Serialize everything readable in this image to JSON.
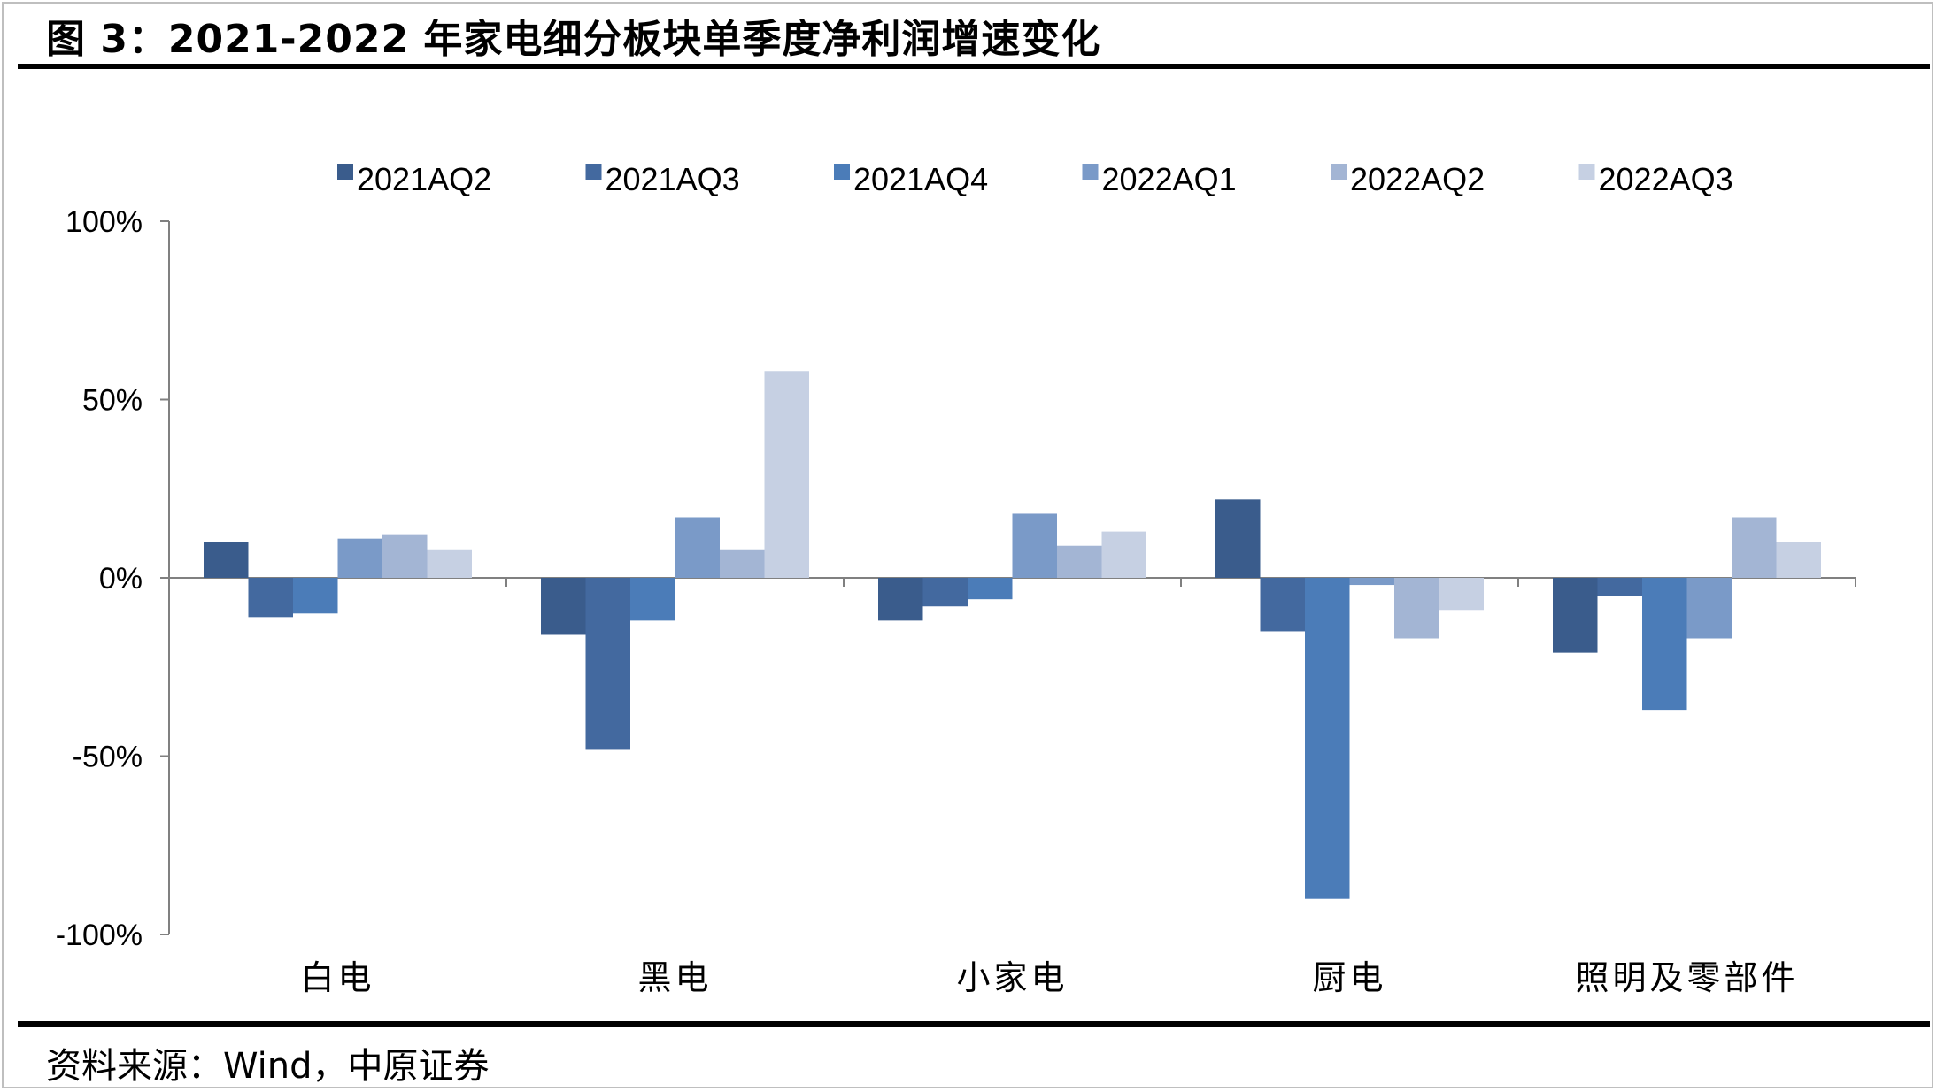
{
  "header": {
    "title": "图 3：2021-2022 年家电细分板块单季度净利润增速变化"
  },
  "footer": {
    "source": "资料来源：Wind，中原证券"
  },
  "chart_data": {
    "type": "bar",
    "title": "",
    "xlabel": "",
    "ylabel": "",
    "categories": [
      "白电",
      "黑电",
      "小家电",
      "厨电",
      "照明及零部件"
    ],
    "ylim": [
      -100,
      100
    ],
    "yticks": [
      -100,
      -50,
      0,
      50,
      100
    ],
    "ytick_labels": [
      "-100%",
      "-50%",
      "0%",
      "50%",
      "100%"
    ],
    "legend_position": "top",
    "grid": false,
    "series": [
      {
        "name": "2021AQ2",
        "color": "#3a5c8c",
        "values": [
          10,
          -16,
          -12,
          22,
          -21
        ]
      },
      {
        "name": "2021AQ3",
        "color": "#43699f",
        "values": [
          -11,
          -48,
          -8,
          -15,
          -5
        ]
      },
      {
        "name": "2021AQ4",
        "color": "#4b7cb8",
        "values": [
          -10,
          -12,
          -6,
          -90,
          -37
        ]
      },
      {
        "name": "2022AQ1",
        "color": "#7a9ac8",
        "values": [
          11,
          17,
          18,
          -2,
          -17
        ]
      },
      {
        "name": "2022AQ2",
        "color": "#a3b5d4",
        "values": [
          12,
          8,
          9,
          -17,
          17
        ]
      },
      {
        "name": "2022AQ3",
        "color": "#c6d0e3",
        "values": [
          8,
          58,
          13,
          -9,
          10
        ]
      }
    ]
  }
}
